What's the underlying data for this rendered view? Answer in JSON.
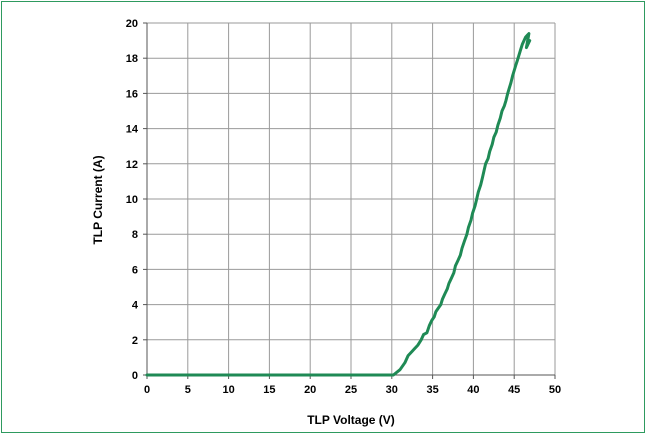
{
  "chart_data": {
    "type": "line",
    "xlabel": "TLP Voltage (V)",
    "ylabel": "TLP Current (A)",
    "xlim": [
      0,
      50
    ],
    "ylim": [
      0,
      20
    ],
    "x_ticks": [
      0,
      5,
      10,
      15,
      20,
      25,
      30,
      35,
      40,
      45,
      50
    ],
    "y_ticks": [
      0,
      2,
      4,
      6,
      8,
      10,
      12,
      14,
      16,
      18,
      20
    ],
    "grid": true,
    "legend": "none",
    "line_color": "#1f8a55",
    "series": [
      {
        "x": [
          0,
          5,
          10,
          15,
          20,
          25,
          30.2,
          31.0,
          31.6,
          32.0,
          32.4,
          32.8,
          33.2,
          33.6,
          33.9,
          34.3,
          34.6,
          34.9,
          35.2,
          35.4,
          35.7,
          36.0,
          36.2,
          36.5,
          36.8,
          37.0,
          37.3,
          37.6,
          37.8,
          38.1,
          38.4,
          38.6,
          38.9,
          39.2,
          39.4,
          39.7,
          39.9,
          40.2,
          40.4,
          40.6,
          40.9,
          41.1,
          41.3,
          41.5,
          41.8,
          42.0,
          42.3,
          42.5,
          42.8,
          43.0,
          43.3,
          43.5,
          43.8,
          44.0,
          44.2,
          44.4,
          44.6,
          44.8,
          45.0,
          45.2,
          45.4,
          45.6,
          45.8,
          46.0,
          46.2,
          46.4,
          46.6,
          46.8,
          46.5,
          46.9
        ],
        "y": [
          0,
          0,
          0,
          0,
          0,
          0,
          0,
          0.3,
          0.7,
          1.1,
          1.3,
          1.5,
          1.7,
          2.0,
          2.3,
          2.4,
          2.8,
          3.1,
          3.3,
          3.6,
          3.8,
          4.0,
          4.3,
          4.6,
          4.9,
          5.2,
          5.5,
          5.8,
          6.2,
          6.5,
          6.8,
          7.2,
          7.6,
          8.0,
          8.4,
          8.8,
          9.2,
          9.6,
          10.0,
          10.4,
          10.8,
          11.2,
          11.6,
          12.0,
          12.3,
          12.7,
          13.1,
          13.5,
          13.8,
          14.2,
          14.6,
          15.0,
          15.3,
          15.6,
          16.0,
          16.3,
          16.6,
          17.0,
          17.3,
          17.6,
          17.9,
          18.2,
          18.5,
          18.8,
          19.0,
          19.2,
          19.3,
          19.4,
          18.6,
          19.0
        ]
      }
    ]
  }
}
